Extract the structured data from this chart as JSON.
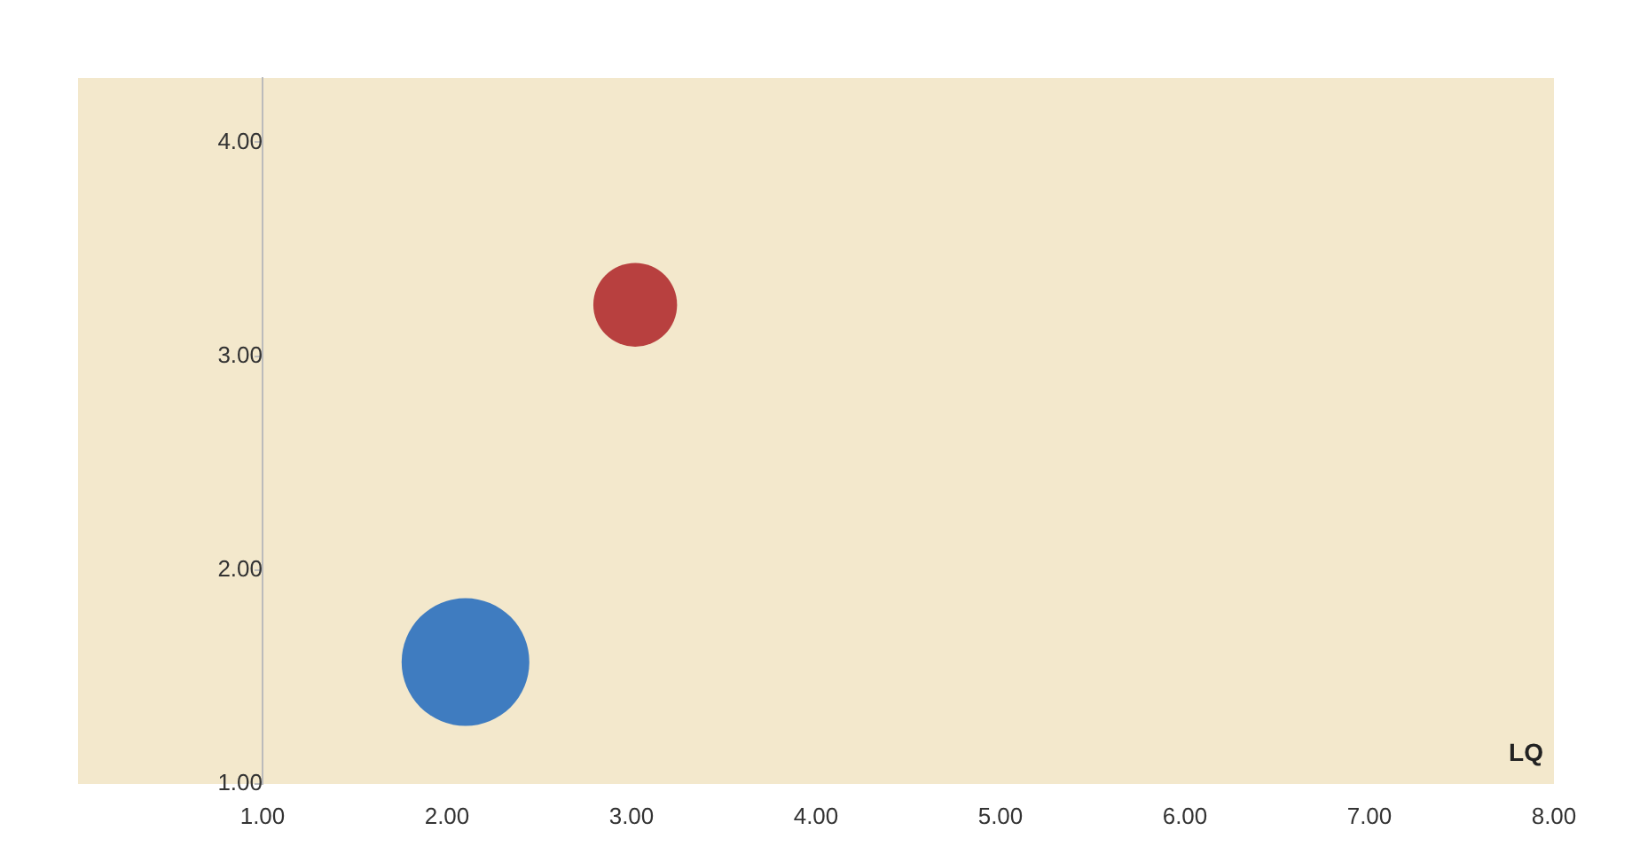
{
  "chart_data": {
    "type": "bubble",
    "xlabel": "LQ",
    "series": [
      {
        "color": "#3f7cc0",
        "x": [
          2.1
        ],
        "values": [
          1.57
        ],
        "sizes": [
          1
        ]
      },
      {
        "color": "#b8403f",
        "x": [
          3.02
        ],
        "values": [
          3.24
        ],
        "sizes": [
          0.43
        ]
      }
    ],
    "xlim": [
      0,
      8
    ],
    "xticks": [
      {
        "value": 1,
        "label": "1.00"
      },
      {
        "value": 2,
        "label": "2.00"
      },
      {
        "value": 3,
        "label": "3.00"
      },
      {
        "value": 4,
        "label": "4.00"
      },
      {
        "value": 5,
        "label": "5.00"
      },
      {
        "value": 6,
        "label": "6.00"
      },
      {
        "value": 7,
        "label": "7.00"
      },
      {
        "value": 8,
        "label": "8.00"
      }
    ],
    "ylim": [
      1,
      4.3
    ],
    "yticks": [
      {
        "value": 1,
        "label": "1.00"
      },
      {
        "value": 2,
        "label": "2.00"
      },
      {
        "value": 3,
        "label": "3.00"
      },
      {
        "value": 4,
        "label": "4.00"
      }
    ],
    "grid": false,
    "legend": false
  }
}
